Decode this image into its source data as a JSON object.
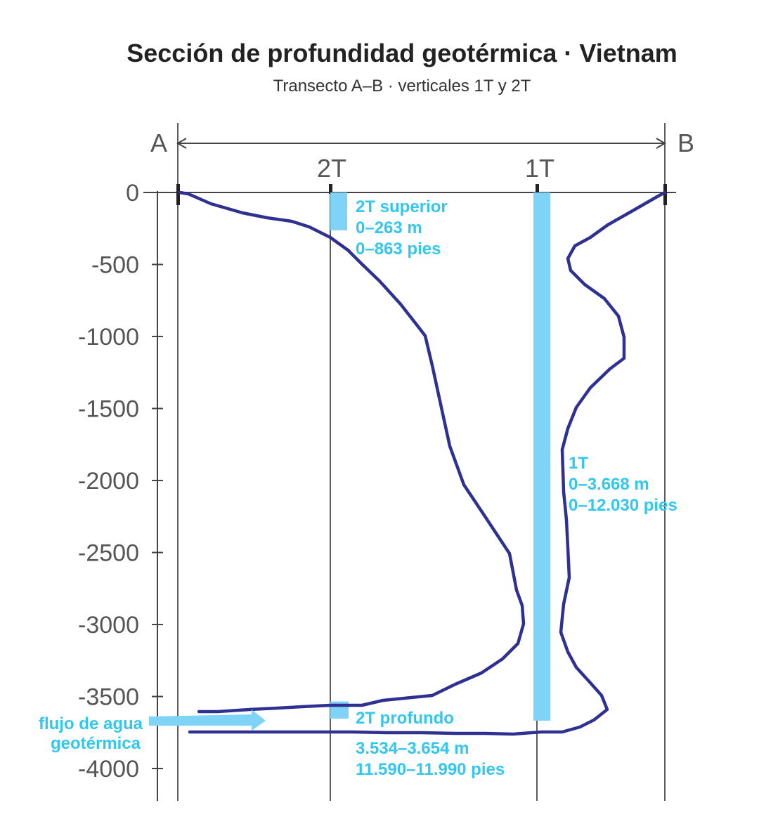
{
  "title": "Sección de profundidad geotérmica · Vietnam",
  "subtitle": "Transecto A–B · verticales 1T y 2T",
  "colors": {
    "curve": "#2e3192",
    "interval": "#7fd3f7",
    "label": "#33c7f0",
    "axis": "#444444"
  },
  "transect": {
    "start_label": "A",
    "end_label": "B"
  },
  "depth_axis": {
    "ticks": [
      "0",
      "-500",
      "-1000",
      "-1500",
      "-2000",
      "-2500",
      "-3000",
      "-3500",
      "-4000"
    ]
  },
  "wells": [
    {
      "id": "2T",
      "label": "2T"
    },
    {
      "id": "1T",
      "label": "1T"
    }
  ],
  "intervals": {
    "upper_2t": {
      "line1": "2T superior",
      "line2": "0–263 m",
      "line3": "0–863 pies",
      "top_m": 0,
      "bottom_m": 263
    },
    "deep_2t": {
      "line1": "2T profundo",
      "line2": "3.534–3.654 m",
      "line3": "11.590–11.990 pies",
      "top_m": 3534,
      "bottom_m": 3654
    },
    "full_1t": {
      "line1": "1T",
      "line2": "0–3.668 m",
      "line3": "0–12.030 pies",
      "top_m": 0,
      "bottom_m": 3668
    }
  },
  "flow_label": {
    "line1": "flujo de agua",
    "line2": "geotérmica"
  }
}
